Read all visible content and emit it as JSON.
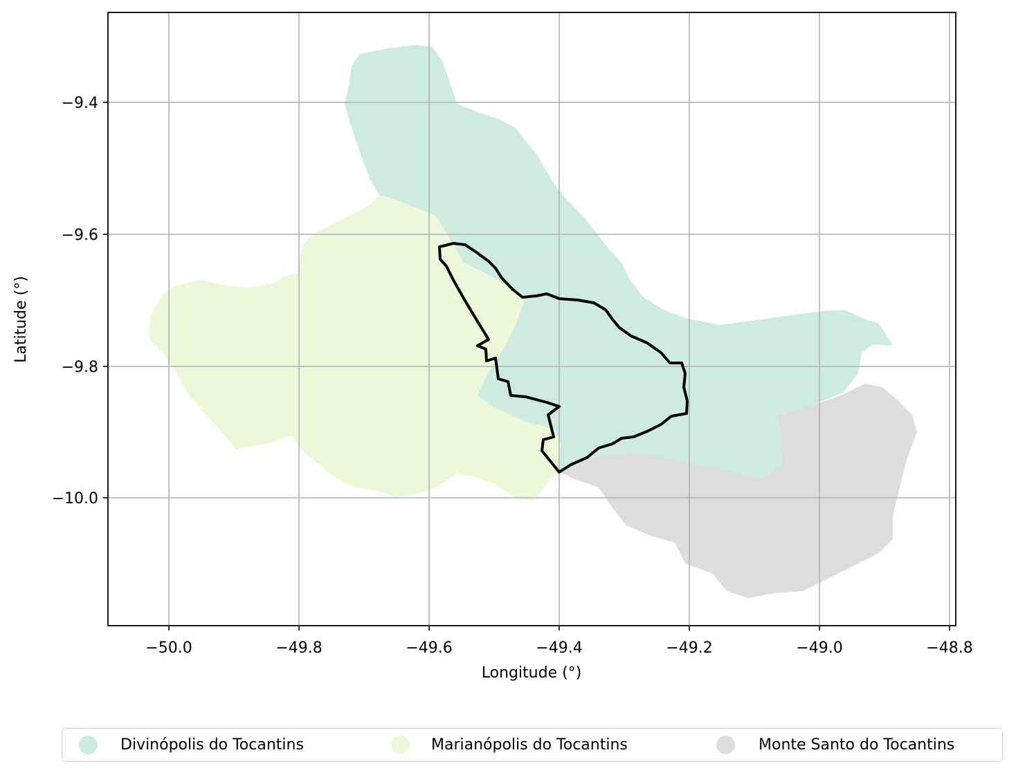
{
  "map": {
    "xlabel": "Longitude (°)",
    "ylabel": "Latitude (°)",
    "x_ticks": [
      "−50.0",
      "−49.8",
      "−49.6",
      "−49.4",
      "−49.2",
      "−49.0",
      "−48.8"
    ],
    "y_ticks": [
      "−9.4",
      "−9.6",
      "−9.8",
      "−10.0"
    ],
    "grid": true,
    "legend_placement": "bottom-center",
    "regions": [
      {
        "name": "Divinópolis do Tocantins",
        "color": "#cdebde"
      },
      {
        "name": "Marianópolis do Tocantins",
        "color": "#edf8da"
      },
      {
        "name": "Monte Santo do Tocantins",
        "color": "#dddddd"
      }
    ],
    "outline_color": "#000000"
  },
  "legend": {
    "items": [
      {
        "label": "Divinópolis do Tocantins",
        "color": "#cdebde"
      },
      {
        "label": "Marianópolis do Tocantins",
        "color": "#edf8da"
      },
      {
        "label": "Monte Santo do Tocantins",
        "color": "#dddddd"
      }
    ]
  }
}
